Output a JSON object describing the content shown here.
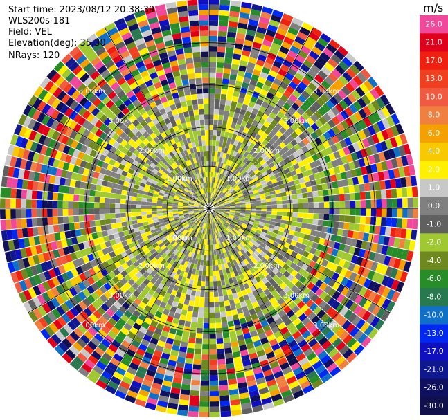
{
  "header": {
    "start_time": "Start time: 2023/08/12 20:38:39",
    "instrument": "WLS200s-181",
    "field": "Field: VEL",
    "elevation": "Elevation(deg): 35.30",
    "nrays": "NRays: 120"
  },
  "colorbar": {
    "unit": "m/s",
    "bins": [
      {
        "label": "26.0",
        "color": "#f0489a"
      },
      {
        "label": "21.0",
        "color": "#e0001c"
      },
      {
        "label": "17.0",
        "color": "#f02010"
      },
      {
        "label": "13.0",
        "color": "#f04020"
      },
      {
        "label": "10.0",
        "color": "#f05a40"
      },
      {
        "label": "8.0",
        "color": "#f08040"
      },
      {
        "label": "6.0",
        "color": "#f4a000"
      },
      {
        "label": "4.0",
        "color": "#f8c800"
      },
      {
        "label": "2.0",
        "color": "#fff000"
      },
      {
        "label": "1.0",
        "color": "#c8c8c8"
      },
      {
        "label": "0.0",
        "color": "#808080"
      },
      {
        "label": "-1.0",
        "color": "#606060"
      },
      {
        "label": "-2.0",
        "color": "#a0c830"
      },
      {
        "label": "-4.0",
        "color": "#708820"
      },
      {
        "label": "-6.0",
        "color": "#288c28"
      },
      {
        "label": "-8.0",
        "color": "#287850"
      },
      {
        "label": "-10.0",
        "color": "#1070c8"
      },
      {
        "label": "-13.0",
        "color": "#0028f0"
      },
      {
        "label": "-17.0",
        "color": "#1010c0"
      },
      {
        "label": "-21.0",
        "color": "#101890"
      },
      {
        "label": "-26.0",
        "color": "#101060"
      },
      {
        "label": "-30.0",
        "color": "#10104c"
      }
    ]
  },
  "chart_data": {
    "type": "heatmap",
    "title": "",
    "projection": "polar PPI",
    "range_ring_labels": [
      "1.00km",
      "2.00km",
      "3.00km",
      "3.00km"
    ],
    "range_rings_km": [
      1.0,
      2.0,
      3.0,
      3.0
    ],
    "max_range_km": 3.0,
    "n_rays": 120,
    "spoke_angles_deg": [
      0,
      30,
      60,
      90,
      120,
      150,
      180,
      210,
      240,
      270,
      300,
      330
    ],
    "value_range": [
      -30.0,
      26.0
    ],
    "grid": true,
    "legend": "right colorbar"
  }
}
